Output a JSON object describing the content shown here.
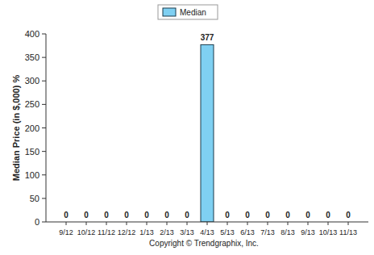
{
  "chart_data": {
    "type": "bar",
    "y_label": "Median Price (in $,000) %",
    "x_label": "Copyright © Trendgraphix, Inc.",
    "categories": [
      "9/12",
      "10/12",
      "11/12",
      "12/12",
      "1/13",
      "2/13",
      "3/13",
      "4/13",
      "5/13",
      "6/13",
      "7/13",
      "8/13",
      "9/13",
      "10/13",
      "11/13"
    ],
    "series": [
      {
        "name": "Median",
        "color": "#7fd0f2",
        "values": [
          0,
          0,
          0,
          0,
          0,
          0,
          0,
          377,
          0,
          0,
          0,
          0,
          0,
          0,
          0
        ]
      }
    ],
    "ylim": [
      0,
      400
    ],
    "yticks": [
      0,
      50,
      100,
      150,
      200,
      250,
      300,
      350,
      400
    ],
    "grid": false,
    "legend": "top",
    "data_labels": true
  }
}
